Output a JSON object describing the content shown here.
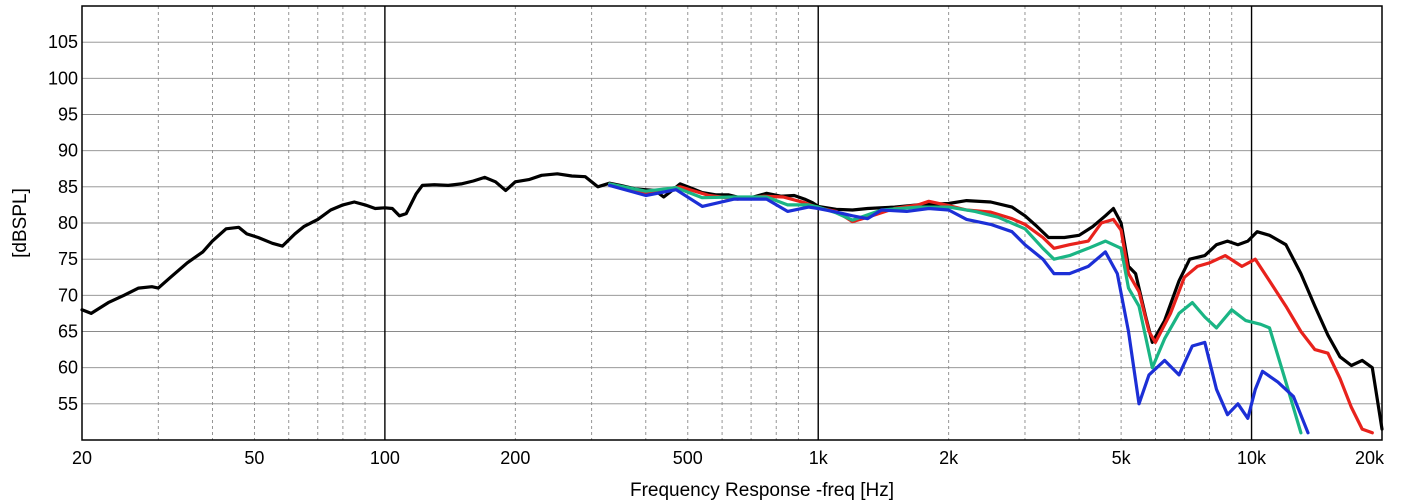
{
  "chart_data": {
    "type": "line",
    "xlabel": "Frequency Response -freq [Hz]",
    "ylabel": "[dBSPL]",
    "x_scale": "log",
    "xlim": [
      20,
      20000
    ],
    "ylim": [
      50,
      110
    ],
    "grid": true,
    "x_ticks": [
      {
        "value": 20,
        "label": "20"
      },
      {
        "value": 50,
        "label": "50"
      },
      {
        "value": 100,
        "label": "100"
      },
      {
        "value": 200,
        "label": "200"
      },
      {
        "value": 500,
        "label": "500"
      },
      {
        "value": 1000,
        "label": "1k"
      },
      {
        "value": 2000,
        "label": "2k"
      },
      {
        "value": 5000,
        "label": "5k"
      },
      {
        "value": 10000,
        "label": "10k"
      },
      {
        "value": 20000,
        "label": "20k"
      }
    ],
    "y_ticks": [
      55,
      60,
      65,
      70,
      75,
      80,
      85,
      90,
      95,
      100,
      105
    ],
    "series": [
      {
        "color": "#000000",
        "points": [
          [
            20,
            68
          ],
          [
            21,
            67.5
          ],
          [
            23,
            69
          ],
          [
            25,
            70
          ],
          [
            27,
            71
          ],
          [
            29,
            71.2
          ],
          [
            30,
            71
          ],
          [
            32,
            72.5
          ],
          [
            35,
            74.5
          ],
          [
            38,
            76
          ],
          [
            40,
            77.5
          ],
          [
            43,
            79.2
          ],
          [
            46,
            79.4
          ],
          [
            48,
            78.5
          ],
          [
            51,
            78
          ],
          [
            55,
            77.2
          ],
          [
            58,
            76.8
          ],
          [
            62,
            78.5
          ],
          [
            65,
            79.5
          ],
          [
            70,
            80.5
          ],
          [
            75,
            81.8
          ],
          [
            80,
            82.5
          ],
          [
            85,
            82.9
          ],
          [
            90,
            82.5
          ],
          [
            95,
            82
          ],
          [
            100,
            82.1
          ],
          [
            104,
            82
          ],
          [
            108,
            81
          ],
          [
            112,
            81.3
          ],
          [
            118,
            84
          ],
          [
            122,
            85.2
          ],
          [
            130,
            85.3
          ],
          [
            140,
            85.2
          ],
          [
            150,
            85.4
          ],
          [
            160,
            85.8
          ],
          [
            170,
            86.3
          ],
          [
            180,
            85.7
          ],
          [
            190,
            84.5
          ],
          [
            200,
            85.7
          ],
          [
            215,
            86
          ],
          [
            230,
            86.6
          ],
          [
            250,
            86.8
          ],
          [
            270,
            86.5
          ],
          [
            290,
            86.4
          ],
          [
            310,
            85
          ],
          [
            330,
            85.5
          ],
          [
            350,
            85.2
          ],
          [
            380,
            84.7
          ],
          [
            420,
            84.5
          ],
          [
            440,
            83.6
          ],
          [
            460,
            84.5
          ],
          [
            480,
            85.4
          ],
          [
            510,
            84.8
          ],
          [
            540,
            84.2
          ],
          [
            580,
            83.9
          ],
          [
            620,
            83.9
          ],
          [
            660,
            83.5
          ],
          [
            700,
            83.5
          ],
          [
            760,
            84.1
          ],
          [
            820,
            83.7
          ],
          [
            880,
            83.8
          ],
          [
            930,
            83.3
          ],
          [
            970,
            82.8
          ],
          [
            1000,
            82.3
          ],
          [
            1100,
            81.9
          ],
          [
            1200,
            81.8
          ],
          [
            1300,
            82
          ],
          [
            1500,
            82.2
          ],
          [
            1700,
            82.5
          ],
          [
            2000,
            82.7
          ],
          [
            2200,
            83.1
          ],
          [
            2500,
            82.9
          ],
          [
            2800,
            82.2
          ],
          [
            3000,
            81
          ],
          [
            3200,
            79.5
          ],
          [
            3400,
            78
          ],
          [
            3700,
            78
          ],
          [
            4000,
            78.3
          ],
          [
            4300,
            79.5
          ],
          [
            4600,
            81
          ],
          [
            4800,
            82
          ],
          [
            5000,
            80
          ],
          [
            5200,
            74
          ],
          [
            5400,
            73
          ],
          [
            5700,
            67
          ],
          [
            5900,
            63.5
          ],
          [
            6300,
            66.5
          ],
          [
            6800,
            72
          ],
          [
            7200,
            75
          ],
          [
            7800,
            75.5
          ],
          [
            8300,
            77
          ],
          [
            8800,
            77.5
          ],
          [
            9300,
            77
          ],
          [
            9800,
            77.5
          ],
          [
            10300,
            78.8
          ],
          [
            11000,
            78.3
          ],
          [
            12000,
            77
          ],
          [
            13000,
            73
          ],
          [
            14000,
            68.5
          ],
          [
            15000,
            64.5
          ],
          [
            16000,
            61.5
          ],
          [
            17000,
            60.3
          ],
          [
            18000,
            61
          ],
          [
            19000,
            60
          ],
          [
            20000,
            51.5
          ]
        ]
      },
      {
        "color": "#e8221c",
        "points": [
          [
            330,
            85.4
          ],
          [
            400,
            84.2
          ],
          [
            480,
            85
          ],
          [
            560,
            83.8
          ],
          [
            650,
            83.3
          ],
          [
            750,
            83.7
          ],
          [
            830,
            83.6
          ],
          [
            930,
            82.8
          ],
          [
            1000,
            82.1
          ],
          [
            1100,
            81.6
          ],
          [
            1200,
            80.2
          ],
          [
            1300,
            80.8
          ],
          [
            1500,
            82
          ],
          [
            1700,
            82.5
          ],
          [
            1800,
            83
          ],
          [
            2000,
            82.4
          ],
          [
            2200,
            81.8
          ],
          [
            2500,
            81.5
          ],
          [
            2800,
            80.6
          ],
          [
            3000,
            79.8
          ],
          [
            3300,
            78
          ],
          [
            3500,
            76.5
          ],
          [
            3800,
            77
          ],
          [
            4200,
            77.5
          ],
          [
            4500,
            80
          ],
          [
            4800,
            80.5
          ],
          [
            5000,
            79
          ],
          [
            5200,
            73
          ],
          [
            5500,
            70.5
          ],
          [
            5800,
            65
          ],
          [
            6000,
            63.5
          ],
          [
            6500,
            67.5
          ],
          [
            7000,
            72.5
          ],
          [
            7500,
            74
          ],
          [
            8000,
            74.5
          ],
          [
            8700,
            75.5
          ],
          [
            9500,
            74
          ],
          [
            10200,
            75
          ],
          [
            11000,
            72
          ],
          [
            12000,
            68.5
          ],
          [
            13000,
            65
          ],
          [
            14000,
            62.5
          ],
          [
            15000,
            62
          ],
          [
            16000,
            58.5
          ],
          [
            17000,
            54.5
          ],
          [
            18000,
            51.5
          ],
          [
            19000,
            51
          ]
        ]
      },
      {
        "color": "#1ab584",
        "points": [
          [
            330,
            85.4
          ],
          [
            400,
            84.4
          ],
          [
            470,
            84.9
          ],
          [
            540,
            83.5
          ],
          [
            640,
            83.6
          ],
          [
            760,
            83.6
          ],
          [
            850,
            82.5
          ],
          [
            950,
            82.5
          ],
          [
            1000,
            82.2
          ],
          [
            1100,
            81.4
          ],
          [
            1200,
            80.4
          ],
          [
            1400,
            81.8
          ],
          [
            1700,
            82.2
          ],
          [
            2000,
            82.2
          ],
          [
            2300,
            81.6
          ],
          [
            2600,
            80.8
          ],
          [
            3000,
            79.2
          ],
          [
            3300,
            76.5
          ],
          [
            3500,
            75
          ],
          [
            3800,
            75.5
          ],
          [
            4200,
            76.5
          ],
          [
            4600,
            77.5
          ],
          [
            5000,
            76.5
          ],
          [
            5200,
            71
          ],
          [
            5500,
            68.5
          ],
          [
            5900,
            60
          ],
          [
            6300,
            64
          ],
          [
            6800,
            67.5
          ],
          [
            7300,
            69
          ],
          [
            7800,
            67
          ],
          [
            8300,
            65.5
          ],
          [
            9000,
            68
          ],
          [
            9700,
            66.5
          ],
          [
            10500,
            66
          ],
          [
            11000,
            65.5
          ],
          [
            12000,
            58
          ],
          [
            13000,
            51
          ]
        ]
      },
      {
        "color": "#1c2fd6",
        "points": [
          [
            330,
            85.2
          ],
          [
            400,
            83.8
          ],
          [
            470,
            84.6
          ],
          [
            540,
            82.3
          ],
          [
            640,
            83.3
          ],
          [
            760,
            83.3
          ],
          [
            850,
            81.6
          ],
          [
            950,
            82.2
          ],
          [
            1000,
            82
          ],
          [
            1100,
            81.5
          ],
          [
            1200,
            81
          ],
          [
            1300,
            80.6
          ],
          [
            1400,
            81.8
          ],
          [
            1600,
            81.6
          ],
          [
            1800,
            82
          ],
          [
            2000,
            81.8
          ],
          [
            2200,
            80.5
          ],
          [
            2500,
            79.8
          ],
          [
            2800,
            78.8
          ],
          [
            3000,
            77
          ],
          [
            3300,
            75
          ],
          [
            3500,
            73
          ],
          [
            3800,
            73
          ],
          [
            4200,
            74
          ],
          [
            4600,
            76
          ],
          [
            4900,
            73
          ],
          [
            5200,
            65
          ],
          [
            5500,
            55
          ],
          [
            5800,
            59
          ],
          [
            6300,
            61
          ],
          [
            6800,
            59
          ],
          [
            7300,
            63
          ],
          [
            7800,
            63.5
          ],
          [
            8300,
            57
          ],
          [
            8800,
            53.5
          ],
          [
            9300,
            55
          ],
          [
            9800,
            53
          ],
          [
            10200,
            57
          ],
          [
            10600,
            59.5
          ],
          [
            11500,
            58
          ],
          [
            12500,
            56
          ],
          [
            13500,
            51
          ]
        ]
      }
    ]
  }
}
